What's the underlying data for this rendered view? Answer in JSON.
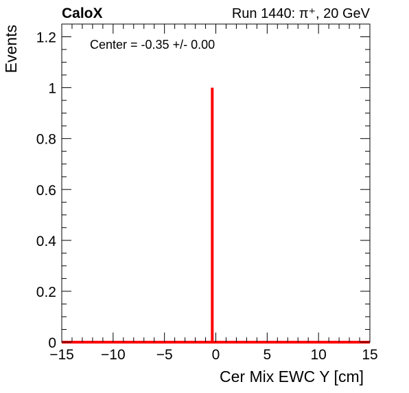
{
  "chart_data": {
    "type": "line",
    "title_left": "CaloX",
    "title_right": "Run 1440: π⁺, 20 GeV",
    "xlabel": "Cer Mix EWC Y [cm]",
    "ylabel": "Events",
    "xlim": [
      -15,
      15
    ],
    "ylim": [
      0,
      1.25
    ],
    "x_ticks": [
      -15,
      -10,
      -5,
      0,
      5,
      10,
      15
    ],
    "x_tick_labels": [
      "−15",
      "−10",
      "−5",
      "0",
      "5",
      "10",
      "15"
    ],
    "y_ticks": [
      0,
      0.2,
      0.4,
      0.6,
      0.8,
      1,
      1.2
    ],
    "y_tick_labels": [
      "0",
      "0.2",
      "0.4",
      "0.6",
      "0.8",
      "1",
      "1.2"
    ],
    "grid": false,
    "annotation": "Center = -0.35 +/- 0.00",
    "series": [
      {
        "color": "#ff0000",
        "points": [
          {
            "x": -15,
            "y": 0
          },
          {
            "x": -0.35,
            "y": 0
          },
          {
            "x": -0.35,
            "y": 1
          },
          {
            "x": -0.35,
            "y": 0
          },
          {
            "x": 15,
            "y": 0
          }
        ]
      }
    ],
    "baseline_color": "#8b0000"
  }
}
